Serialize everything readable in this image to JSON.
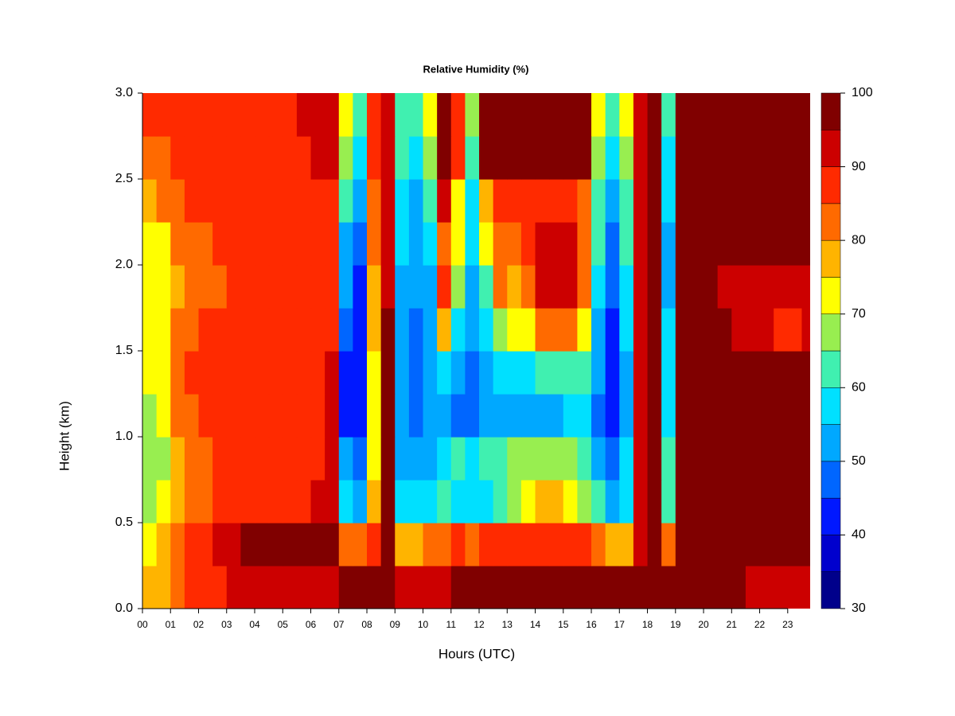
{
  "chart_data": {
    "type": "contour",
    "title": "Relative Humidity (%)",
    "x_label": "Hours (UTC)",
    "y_label": "Height (km)",
    "xlim": [
      0,
      23.8
    ],
    "ylim": [
      0,
      3
    ],
    "xticks": [
      {
        "value": 0,
        "label": "00"
      },
      {
        "value": 1,
        "label": "01"
      },
      {
        "value": 2,
        "label": "02"
      },
      {
        "value": 3,
        "label": "03"
      },
      {
        "value": 4,
        "label": "04"
      },
      {
        "value": 5,
        "label": "05"
      },
      {
        "value": 6,
        "label": "06"
      },
      {
        "value": 7,
        "label": "07"
      },
      {
        "value": 8,
        "label": "08"
      },
      {
        "value": 9,
        "label": "09"
      },
      {
        "value": 10,
        "label": "10"
      },
      {
        "value": 11,
        "label": "11"
      },
      {
        "value": 12,
        "label": "12"
      },
      {
        "value": 13,
        "label": "13"
      },
      {
        "value": 14,
        "label": "14"
      },
      {
        "value": 15,
        "label": "15"
      },
      {
        "value": 16,
        "label": "16"
      },
      {
        "value": 17,
        "label": "17"
      },
      {
        "value": 18,
        "label": "18"
      },
      {
        "value": 19,
        "label": "19"
      },
      {
        "value": 20,
        "label": "20"
      },
      {
        "value": 21,
        "label": "21"
      },
      {
        "value": 22,
        "label": "22"
      },
      {
        "value": 23,
        "label": "23"
      }
    ],
    "yticks": [
      {
        "value": 0,
        "label": "0.0"
      },
      0.5,
      {
        "value": 1,
        "label": "1.0"
      },
      1.5,
      {
        "value": 2,
        "label": "2.0"
      },
      2.5,
      {
        "value": 3,
        "label": "3.0"
      }
    ],
    "x": [
      0.25,
      0.75,
      1.25,
      1.75,
      2.25,
      2.75,
      3.25,
      3.75,
      4.25,
      4.75,
      5.25,
      5.75,
      6.25,
      6.75,
      7.25,
      7.75,
      8.25,
      8.75,
      9.25,
      9.75,
      10.25,
      10.75,
      11.25,
      11.75,
      12.25,
      12.75,
      13.25,
      13.75,
      14.25,
      14.75,
      15.25,
      15.75,
      16.25,
      16.75,
      17.25,
      17.75,
      18.25,
      18.75,
      19.25,
      19.75,
      20.25,
      20.75,
      21.25,
      21.75,
      22.25,
      22.75,
      23.25,
      23.75
    ],
    "y": [
      0.125,
      0.375,
      0.625,
      0.875,
      1.125,
      1.375,
      1.625,
      1.875,
      2.125,
      2.375,
      2.625,
      2.875
    ],
    "z": [
      [
        78,
        80,
        85,
        88,
        90,
        90,
        92,
        93,
        94,
        94,
        95,
        95,
        95,
        95,
        97,
        98,
        98,
        99,
        95,
        95,
        94,
        95,
        98,
        99,
        99,
        99,
        99,
        99,
        99,
        99,
        99,
        99,
        98,
        98,
        97,
        97,
        99,
        99,
        97,
        97,
        96,
        96,
        96,
        95,
        95,
        95,
        94,
        94
      ],
      [
        75,
        78,
        85,
        88,
        90,
        92,
        95,
        96,
        96,
        96,
        97,
        97,
        97,
        97,
        85,
        82,
        90,
        97,
        80,
        78,
        82,
        85,
        88,
        85,
        88,
        90,
        90,
        88,
        90,
        88,
        90,
        88,
        85,
        78,
        80,
        95,
        99,
        82,
        99,
        99,
        99,
        99,
        99,
        99,
        99,
        99,
        99,
        99
      ],
      [
        70,
        72,
        80,
        82,
        85,
        87,
        88,
        88,
        90,
        90,
        90,
        90,
        92,
        93,
        60,
        55,
        80,
        97,
        60,
        58,
        60,
        62,
        60,
        58,
        60,
        65,
        68,
        72,
        78,
        78,
        75,
        68,
        62,
        55,
        60,
        92,
        99,
        65,
        99,
        99,
        99,
        99,
        99,
        99,
        99,
        99,
        99,
        99
      ],
      [
        68,
        70,
        80,
        84,
        85,
        86,
        87,
        88,
        88,
        89,
        90,
        90,
        90,
        92,
        52,
        48,
        75,
        97,
        55,
        52,
        55,
        60,
        62,
        60,
        62,
        65,
        66,
        68,
        70,
        70,
        68,
        62,
        55,
        50,
        58,
        92,
        99,
        62,
        99,
        99,
        99,
        99,
        99,
        99,
        99,
        99,
        99,
        99
      ],
      [
        70,
        72,
        82,
        85,
        86,
        87,
        88,
        88,
        88,
        89,
        90,
        90,
        90,
        92,
        45,
        42,
        72,
        96,
        52,
        50,
        55,
        55,
        50,
        48,
        52,
        55,
        55,
        52,
        55,
        55,
        58,
        58,
        50,
        44,
        55,
        92,
        99,
        58,
        99,
        99,
        99,
        99,
        99,
        99,
        99,
        99,
        99,
        99
      ],
      [
        72,
        75,
        84,
        86,
        87,
        88,
        88,
        88,
        89,
        89,
        90,
        90,
        90,
        92,
        45,
        42,
        75,
        96,
        52,
        50,
        55,
        58,
        52,
        50,
        55,
        58,
        60,
        60,
        62,
        65,
        65,
        62,
        52,
        45,
        55,
        92,
        99,
        58,
        99,
        99,
        99,
        99,
        97,
        97,
        96,
        96,
        96,
        97
      ],
      [
        72,
        75,
        82,
        85,
        86,
        87,
        88,
        88,
        88,
        89,
        89,
        89,
        90,
        90,
        48,
        42,
        78,
        96,
        55,
        50,
        55,
        78,
        60,
        52,
        58,
        68,
        72,
        75,
        82,
        85,
        85,
        75,
        55,
        45,
        58,
        93,
        99,
        58,
        99,
        99,
        99,
        97,
        95,
        92,
        92,
        90,
        90,
        92
      ],
      [
        72,
        72,
        80,
        82,
        84,
        85,
        86,
        86,
        86,
        87,
        87,
        87,
        88,
        88,
        52,
        45,
        80,
        95,
        55,
        52,
        55,
        88,
        68,
        55,
        65,
        85,
        80,
        85,
        92,
        95,
        93,
        82,
        60,
        48,
        60,
        93,
        99,
        55,
        99,
        99,
        97,
        95,
        93,
        92,
        92,
        92,
        92,
        93
      ],
      [
        75,
        75,
        82,
        84,
        85,
        86,
        86,
        87,
        87,
        88,
        88,
        88,
        89,
        89,
        55,
        48,
        82,
        95,
        58,
        55,
        58,
        85,
        72,
        58,
        72,
        85,
        82,
        88,
        92,
        93,
        92,
        82,
        62,
        50,
        62,
        93,
        99,
        55,
        99,
        99,
        98,
        97,
        96,
        96,
        96,
        96,
        96,
        96
      ],
      [
        80,
        82,
        85,
        87,
        88,
        88,
        88,
        89,
        89,
        89,
        90,
        90,
        90,
        90,
        62,
        52,
        85,
        95,
        60,
        55,
        62,
        95,
        75,
        60,
        80,
        90,
        88,
        90,
        88,
        88,
        88,
        85,
        65,
        52,
        65,
        94,
        99,
        58,
        99,
        99,
        99,
        99,
        99,
        99,
        99,
        99,
        99,
        99
      ],
      [
        84,
        85,
        87,
        88,
        88,
        88,
        89,
        89,
        89,
        90,
        90,
        90,
        91,
        91,
        68,
        58,
        88,
        95,
        62,
        58,
        68,
        99,
        88,
        65,
        99,
        99,
        99,
        99,
        99,
        99,
        99,
        99,
        70,
        58,
        68,
        95,
        99,
        60,
        99,
        99,
        99,
        99,
        99,
        99,
        99,
        99,
        99,
        99
      ],
      [
        86,
        86,
        88,
        88,
        89,
        89,
        89,
        89,
        90,
        90,
        90,
        91,
        91,
        92,
        72,
        62,
        88,
        95,
        65,
        62,
        72,
        99,
        90,
        68,
        99,
        99,
        99,
        99,
        99,
        99,
        99,
        99,
        75,
        62,
        72,
        95,
        99,
        65,
        99,
        99,
        99,
        99,
        99,
        99,
        99,
        99,
        99,
        99
      ]
    ],
    "levels": [
      30,
      35,
      40,
      45,
      50,
      55,
      60,
      65,
      70,
      75,
      80,
      85,
      90,
      95,
      100
    ],
    "colors": [
      "#00008b",
      "#0000cd",
      "#0018ff",
      "#0066ff",
      "#00a8ff",
      "#00e0ff",
      "#40f0b0",
      "#98ee50",
      "#ffff00",
      "#ffb400",
      "#ff6a00",
      "#ff2a00",
      "#cc0000",
      "#800000"
    ],
    "colorbar_ticks": [
      30,
      40,
      50,
      60,
      70,
      80,
      90,
      100
    ]
  }
}
